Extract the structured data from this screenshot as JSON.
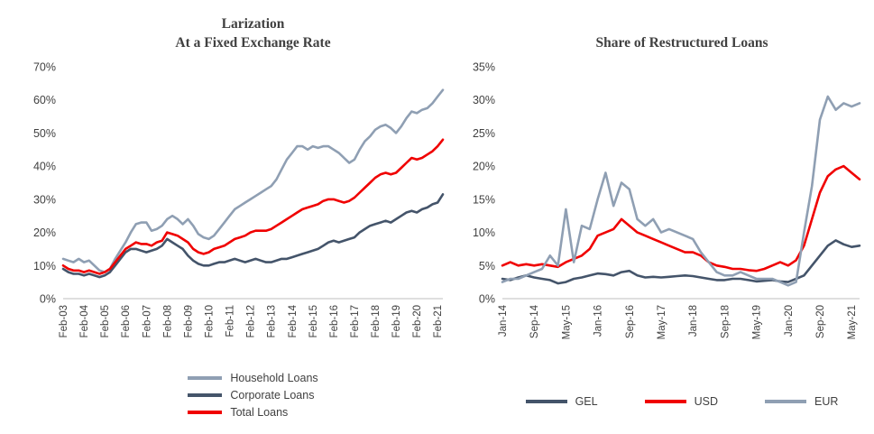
{
  "colors": {
    "light_bluegray": "#8f9fb3",
    "dark_slate": "#44546a",
    "red": "#f00000",
    "title_gray": "#404040",
    "axis_gray": "#bfbfbf",
    "background": "#ffffff"
  },
  "chart_data": [
    {
      "type": "line",
      "title": "Larization At a Fixed Exchange Rate",
      "title_lines": [
        "Larization",
        "At a Fixed Exchange Rate"
      ],
      "ylim": [
        0,
        70
      ],
      "ytick_step": 10,
      "ytick_suffix": "%",
      "grid": false,
      "legend_position": "bottom-stacked",
      "x_resolution": "quarterly, Feb-03 to May-21",
      "xtick_indices": [
        0,
        4,
        8,
        12,
        16,
        20,
        24,
        28,
        32,
        36,
        40,
        44,
        48,
        52,
        56,
        60,
        64,
        68,
        72
      ],
      "xtick_labels": [
        "Feb-03",
        "Feb-04",
        "Feb-05",
        "Feb-06",
        "Feb-07",
        "Feb-08",
        "Feb-09",
        "Feb-10",
        "Feb-11",
        "Feb-12",
        "Feb-13",
        "Feb-14",
        "Feb-15",
        "Feb-16",
        "Feb-17",
        "Feb-18",
        "Feb-19",
        "Feb-20",
        "Feb-21"
      ],
      "series": [
        {
          "name": "Household Loans",
          "color": "#8f9fb3",
          "values": [
            12,
            11.5,
            11,
            12,
            11,
            11.5,
            10,
            8.5,
            8,
            9,
            12,
            14.5,
            17,
            20,
            22.5,
            23,
            23,
            20.5,
            21,
            22,
            24,
            25,
            24,
            22.5,
            24,
            22,
            19.5,
            18.5,
            18,
            19,
            21,
            23,
            25,
            27,
            28,
            29,
            30,
            31,
            32,
            33,
            34,
            36,
            39,
            42,
            44,
            46,
            46,
            45,
            46,
            45.5,
            46,
            46,
            45,
            44,
            42.5,
            41,
            42,
            45,
            47.5,
            49,
            51,
            52,
            52.5,
            51.5,
            50,
            52,
            54.5,
            56.5,
            56,
            57,
            57.5,
            59,
            61,
            63
          ]
        },
        {
          "name": "Corporate Loans",
          "color": "#44546a",
          "values": [
            9,
            8,
            7.5,
            7.5,
            7,
            7.5,
            7,
            6.5,
            7,
            8,
            10,
            12,
            14,
            15,
            15,
            14.5,
            14,
            14.5,
            15,
            16,
            18,
            17,
            16,
            15,
            13,
            11.5,
            10.5,
            10,
            10,
            10.5,
            11,
            11,
            11.5,
            12,
            11.5,
            11,
            11.5,
            12,
            11.5,
            11,
            11,
            11.5,
            12,
            12,
            12.5,
            13,
            13.5,
            14,
            14.5,
            15,
            16,
            17,
            17.5,
            17,
            17.5,
            18,
            18.5,
            20,
            21,
            22,
            22.5,
            23,
            23.5,
            23,
            24,
            25,
            26,
            26.5,
            26,
            27,
            27.5,
            28.5,
            29,
            31.5
          ]
        },
        {
          "name": "Total Loans",
          "color": "#f00000",
          "values": [
            10,
            9,
            8.5,
            8.5,
            8,
            8.5,
            8,
            7.5,
            8,
            9,
            11,
            13,
            15,
            16,
            17,
            16.5,
            16.5,
            16,
            17,
            17.5,
            20,
            19.5,
            19,
            18,
            17,
            15,
            14,
            13.5,
            14,
            15,
            15.5,
            16,
            17,
            18,
            18.5,
            19,
            20,
            20.5,
            20.5,
            20.5,
            21,
            22,
            23,
            24,
            25,
            26,
            27,
            27.5,
            28,
            28.5,
            29.5,
            30,
            30,
            29.5,
            29,
            29.5,
            30.5,
            32,
            33.5,
            35,
            36.5,
            37.5,
            38,
            37.5,
            38,
            39.5,
            41,
            42.5,
            42,
            42.5,
            43.5,
            44.5,
            46,
            48
          ]
        }
      ]
    },
    {
      "type": "line",
      "title": "Share of Restructured Loans",
      "title_lines": [
        "Share of Restructured Loans"
      ],
      "ylim": [
        0,
        35
      ],
      "ytick_step": 5,
      "ytick_suffix": "%",
      "grid": false,
      "legend_position": "bottom-row",
      "x_resolution": "bimonthly, Jan-14 to Jul-21",
      "xtick_indices": [
        0,
        4,
        8,
        12,
        16,
        20,
        24,
        28,
        32,
        36,
        40,
        44
      ],
      "xtick_labels": [
        "Jan-14",
        "Sep-14",
        "May-15",
        "Jan-16",
        "Sep-16",
        "May-17",
        "Jan-18",
        "Sep-18",
        "May-19",
        "Jan-20",
        "Sep-20",
        "May-21"
      ],
      "series": [
        {
          "name": "GEL",
          "color": "#44546a",
          "values": [
            3,
            2.8,
            3.2,
            3.5,
            3.2,
            3,
            2.8,
            2.3,
            2.5,
            3,
            3.2,
            3.5,
            3.8,
            3.7,
            3.5,
            4,
            4.2,
            3.5,
            3.2,
            3.3,
            3.2,
            3.3,
            3.4,
            3.5,
            3.4,
            3.2,
            3,
            2.8,
            2.8,
            3,
            3,
            2.8,
            2.6,
            2.7,
            2.8,
            2.6,
            2.5,
            3,
            3.5,
            5,
            6.5,
            8,
            8.8,
            8.2,
            7.8,
            8
          ]
        },
        {
          "name": "USD",
          "color": "#f00000",
          "values": [
            5,
            5.5,
            5,
            5.2,
            5,
            5.2,
            5,
            4.8,
            5.5,
            6,
            6.5,
            7.5,
            9.5,
            10,
            10.5,
            12,
            11,
            10,
            9.5,
            9,
            8.5,
            8,
            7.5,
            7,
            7,
            6.5,
            5.5,
            5,
            4.8,
            4.5,
            4.5,
            4.3,
            4.2,
            4.5,
            5,
            5.5,
            5,
            5.8,
            8,
            12,
            16,
            18.5,
            19.5,
            20,
            19,
            18
          ]
        },
        {
          "name": "EUR",
          "color": "#8f9fb3",
          "values": [
            2.5,
            3,
            3,
            3.5,
            4,
            4.5,
            6.5,
            5,
            13.5,
            5.5,
            11,
            10.5,
            15,
            19,
            14,
            17.5,
            16.5,
            12,
            11,
            12,
            10,
            10.5,
            10,
            9.5,
            9,
            7,
            5.5,
            4,
            3.5,
            3.5,
            4,
            3.5,
            3,
            3,
            3,
            2.5,
            2,
            2.5,
            10,
            17,
            27,
            30.5,
            28.5,
            29.5,
            29,
            29.5
          ]
        }
      ]
    }
  ]
}
